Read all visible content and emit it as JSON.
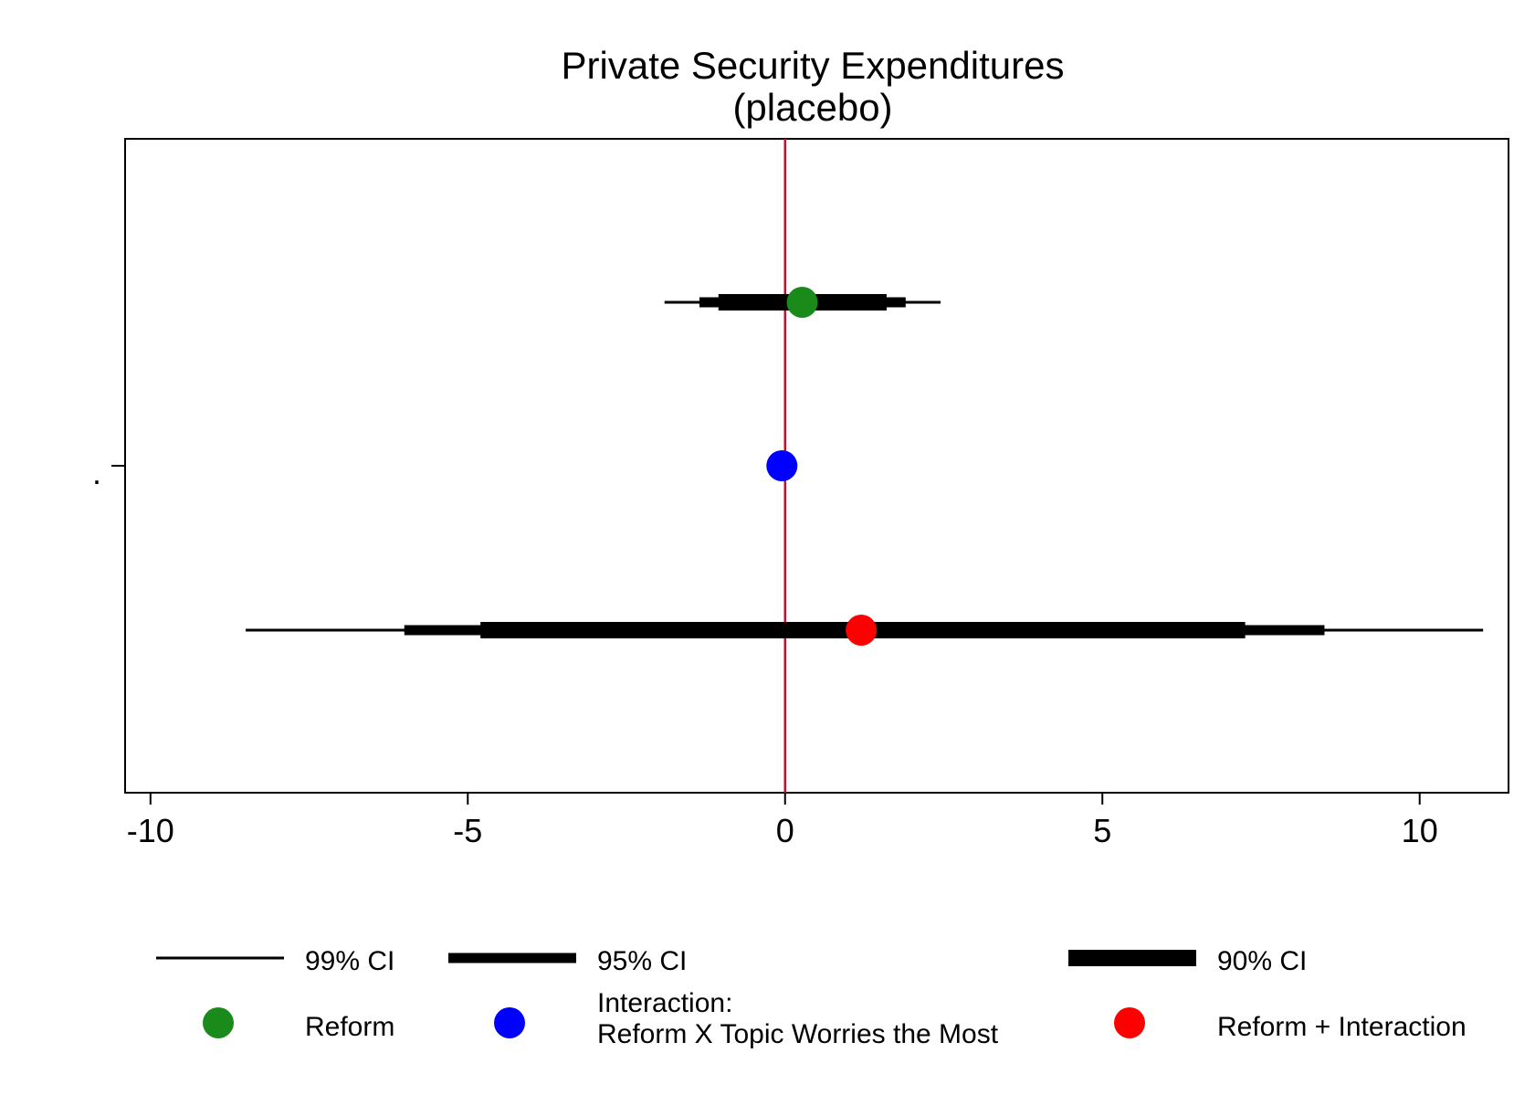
{
  "chart_data": {
    "type": "scatter",
    "title": "Private Security Expenditures",
    "subtitle": "(placebo)",
    "xlabel": "",
    "ylabel": "",
    "y_tick_label": ".",
    "xlim": [
      -10.4,
      11.4
    ],
    "x_ticks": [
      -10,
      -5,
      0,
      5,
      10
    ],
    "x_tick_labels": [
      "-10",
      "-5",
      "0",
      "5",
      "10"
    ],
    "reference_line": {
      "x": 0,
      "color": "#c8102e"
    },
    "grid": false,
    "legend_position": "bottom",
    "ci_legend": [
      {
        "name": "99% CI",
        "level": 99
      },
      {
        "name": "95% CI",
        "level": 95
      },
      {
        "name": "90% CI",
        "level": 90
      }
    ],
    "series": [
      {
        "name": "Reform",
        "color": "#1a8a1a",
        "estimate": 0.27,
        "ci99": [
          -1.9,
          2.45
        ],
        "ci95": [
          -1.35,
          1.9
        ],
        "ci90": [
          -1.05,
          1.6
        ]
      },
      {
        "name": "Interaction:\nReform X Topic Worries the Most",
        "name_lines": [
          "Interaction:",
          "Reform X Topic Worries the Most"
        ],
        "color": "#0000ff",
        "estimate": -0.05,
        "ci99": null,
        "ci95": null,
        "ci90": null
      },
      {
        "name": "Reform + Interaction",
        "color": "#ff0000",
        "estimate": 1.2,
        "ci99": [
          -8.5,
          11.0
        ],
        "ci95": [
          -6.0,
          8.5
        ],
        "ci90": [
          -4.8,
          7.25
        ]
      }
    ]
  }
}
